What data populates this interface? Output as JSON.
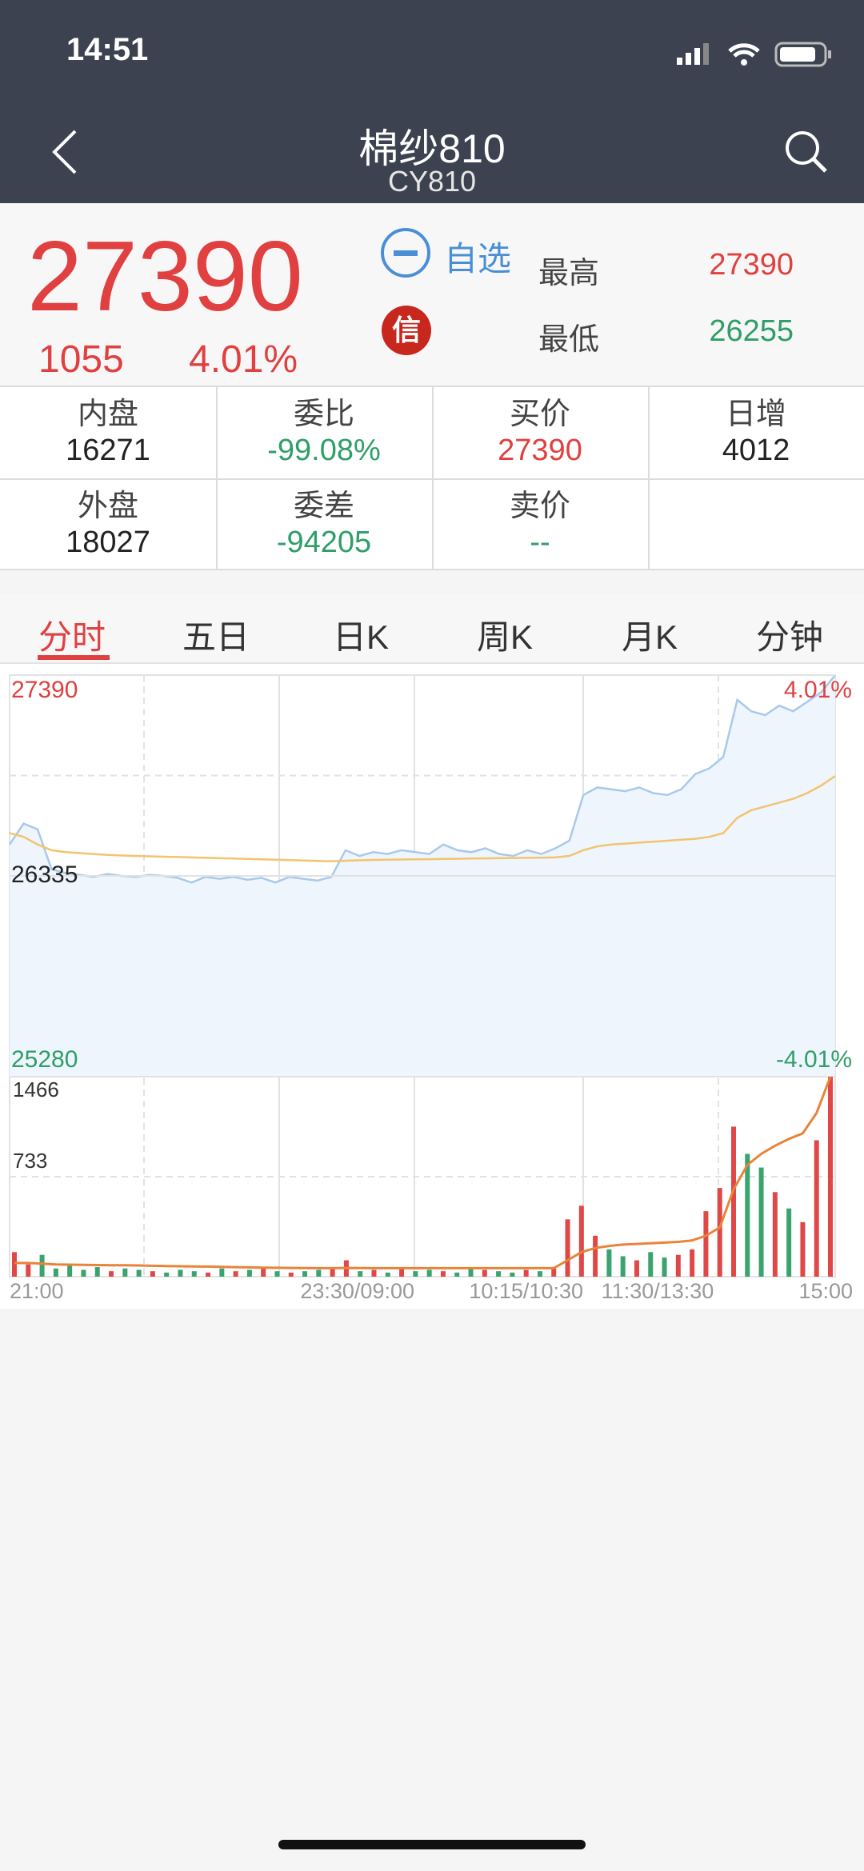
{
  "status_bar": {
    "time": "14:51"
  },
  "header": {
    "title": "棉纱810",
    "code": "CY810"
  },
  "quote": {
    "price": "27390",
    "change": "1055",
    "change_pct": "4.01%",
    "watch_label": "自选",
    "badge": "信",
    "high_label": "最高",
    "high": "27390",
    "low_label": "最低",
    "low": "26255"
  },
  "stats": {
    "rows": [
      [
        {
          "label": "内盘",
          "value": "16271"
        },
        {
          "label": "委比",
          "value": "-99.08%"
        },
        {
          "label": "买价",
          "value": "27390"
        },
        {
          "label": "日增",
          "value": "4012"
        }
      ],
      [
        {
          "label": "外盘",
          "value": "18027"
        },
        {
          "label": "委差",
          "value": "-94205"
        },
        {
          "label": "卖价",
          "value": "--"
        }
      ]
    ]
  },
  "tabs": {
    "items": [
      "分时",
      "五日",
      "日K",
      "周K",
      "月K",
      "分钟 ▾"
    ]
  },
  "chart_data": [
    {
      "type": "line",
      "ylim": [
        25280,
        27390
      ],
      "yticks": [
        25280,
        26335,
        27390
      ],
      "y2lim": [
        -4.01,
        4.01
      ],
      "y2ticks": [
        {
          "value": -4.01,
          "label": "-4.01%"
        },
        {
          "value": 4.01,
          "label": "4.01%"
        }
      ],
      "series": [
        {
          "color": "#a9c9ec",
          "values": [
            26500,
            26610,
            26580,
            26370,
            26350,
            26340,
            26330,
            26345,
            26335,
            26330,
            26340,
            26335,
            26325,
            26300,
            26330,
            26320,
            26330,
            26315,
            26325,
            26300,
            26330,
            26320,
            26310,
            26330,
            26470,
            26440,
            26460,
            26450,
            26470,
            26460,
            26450,
            26500,
            26470,
            26460,
            26480,
            26450,
            26440,
            26470,
            26450,
            26480,
            26520,
            26760,
            26800,
            26790,
            26780,
            26800,
            26770,
            26760,
            26790,
            26870,
            26900,
            26960,
            27260,
            27200,
            27180,
            27230,
            27200,
            27250,
            27300,
            27390
          ]
        },
        {
          "color": "#f2c46e",
          "values": [
            26560,
            26540,
            26500,
            26470,
            26460,
            26455,
            26450,
            26445,
            26442,
            26440,
            26438,
            26436,
            26434,
            26432,
            26430,
            26428,
            26426,
            26424,
            26422,
            26420,
            26418,
            26416,
            26414,
            26412,
            26415,
            26417,
            26419,
            26420,
            26421,
            26422,
            26423,
            26424,
            26425,
            26426,
            26427,
            26428,
            26429,
            26430,
            26431,
            26432,
            26440,
            26470,
            26490,
            26500,
            26505,
            26510,
            26515,
            26520,
            26525,
            26530,
            26540,
            26560,
            26640,
            26680,
            26700,
            26720,
            26740,
            26770,
            26810,
            26860
          ]
        }
      ]
    },
    {
      "type": "bar",
      "ylim": [
        0,
        1466
      ],
      "yticks": [
        733,
        1466
      ],
      "up_color": "#e04848",
      "down_color": "#3aa36e",
      "values": [
        180,
        90,
        160,
        60,
        80,
        50,
        70,
        40,
        60,
        50,
        40,
        30,
        50,
        40,
        30,
        60,
        40,
        50,
        70,
        40,
        30,
        40,
        50,
        60,
        120,
        40,
        50,
        30,
        60,
        40,
        50,
        40,
        30,
        60,
        50,
        40,
        30,
        50,
        40,
        60,
        420,
        520,
        300,
        200,
        150,
        120,
        180,
        140,
        160,
        200,
        480,
        650,
        1100,
        900,
        800,
        620,
        500,
        400,
        1000,
        1466
      ],
      "line": {
        "color": "#e8843a",
        "values": [
          100,
          100,
          95,
          90,
          88,
          86,
          85,
          84,
          83,
          82,
          80,
          78,
          76,
          75,
          74,
          72,
          70,
          68,
          66,
          65,
          64,
          63,
          62,
          62,
          64,
          63,
          62,
          62,
          62,
          62,
          62,
          62,
          62,
          62,
          62,
          62,
          62,
          62,
          62,
          62,
          120,
          180,
          210,
          225,
          235,
          240,
          245,
          250,
          255,
          265,
          300,
          360,
          640,
          820,
          900,
          960,
          1010,
          1050,
          1200,
          1466
        ]
      },
      "x_labels": [
        "21:00",
        "23:30/09:00",
        "10:15/10:30",
        "11:30/13:30",
        "15:00"
      ]
    }
  ]
}
